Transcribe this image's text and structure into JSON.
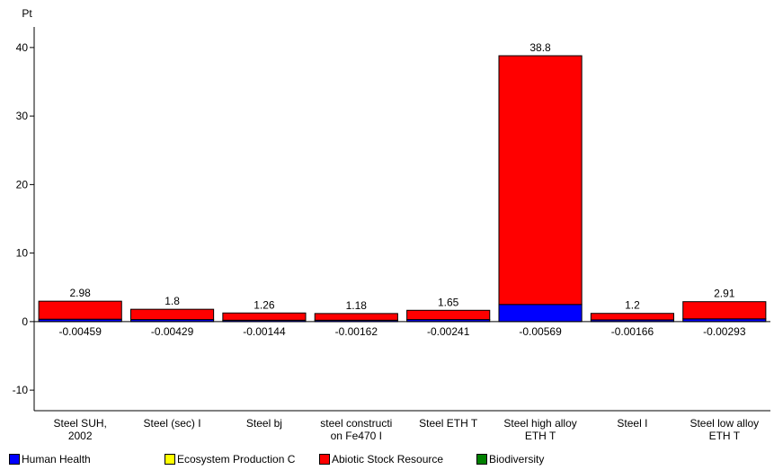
{
  "chart_data": {
    "type": "bar",
    "stacked": true,
    "ylabel": "Pt",
    "ylim": [
      -13,
      43
    ],
    "yticks": [
      -10,
      0,
      10,
      20,
      30,
      40
    ],
    "grid": false,
    "legend_position": "bottom",
    "categories": [
      [
        "Steel  SUH,",
        "2002"
      ],
      [
        "Steel (sec) I"
      ],
      [
        "Steel bj"
      ],
      [
        "steel constructi",
        "on Fe470 I"
      ],
      [
        "Steel ETH T"
      ],
      [
        "Steel high alloy",
        "ETH T"
      ],
      [
        "Steel I"
      ],
      [
        "Steel low alloy",
        "ETH T"
      ]
    ],
    "totals": [
      "2.98",
      "1.8",
      "1.26",
      "1.18",
      "1.65",
      "38.8",
      "1.2",
      "2.91"
    ],
    "negative_totals": [
      "-0.00459",
      "-0.00429",
      "-0.00144",
      "-0.00162",
      "-0.00241",
      "-0.00569",
      "-0.00166",
      "-0.00293"
    ],
    "series": [
      {
        "name": "Human Health",
        "color": "#0000ff",
        "values": [
          0.35,
          0.3,
          0.2,
          0.2,
          0.3,
          2.5,
          0.25,
          0.4
        ]
      },
      {
        "name": "Ecosystem Production C",
        "color": "#ffff00",
        "values": [
          0,
          0,
          0,
          0,
          0,
          0,
          0,
          0
        ]
      },
      {
        "name": "Abiotic Stock Resource",
        "color": "#ff0000",
        "values": [
          2.63,
          1.5,
          1.06,
          0.98,
          1.35,
          36.3,
          0.95,
          2.51
        ]
      },
      {
        "name": "Biodiversity",
        "color": "#008000",
        "values": [
          0,
          0,
          0,
          0,
          0,
          0,
          0,
          0
        ]
      }
    ]
  }
}
